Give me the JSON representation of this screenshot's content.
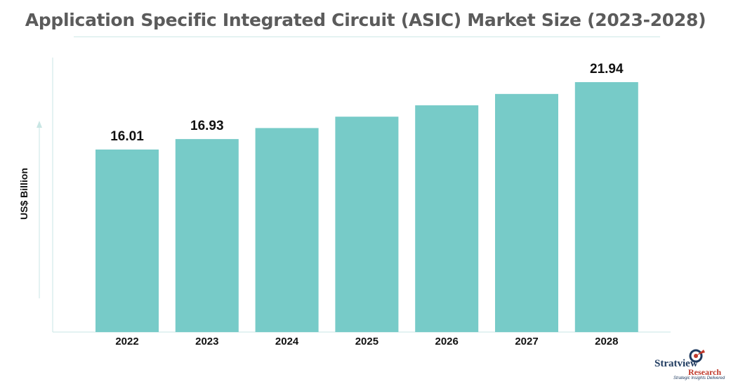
{
  "title": "Application Specific Integrated Circuit (ASIC) Market Size (2023-2028)",
  "colors": {
    "bar": "#77cbc8",
    "axis": "#c9e6e4",
    "text": "#111111",
    "title": "#5b5b5b"
  },
  "chart_data": {
    "type": "bar",
    "categories": [
      "2022",
      "2023",
      "2024",
      "2025",
      "2026",
      "2027",
      "2028"
    ],
    "values": [
      16.01,
      16.93,
      17.9,
      18.9,
      19.9,
      20.9,
      21.94
    ],
    "data_labels": [
      "16.01",
      "16.93",
      "",
      "",
      "",
      "",
      "21.94"
    ],
    "ylabel": "US$ Billion",
    "xlabel": "",
    "ylim": [
      0,
      25
    ],
    "grid": false,
    "legend": "none"
  },
  "logo": {
    "name": "Stratview",
    "sub": "Research",
    "tagline": "Strategic Insights Delivered"
  }
}
